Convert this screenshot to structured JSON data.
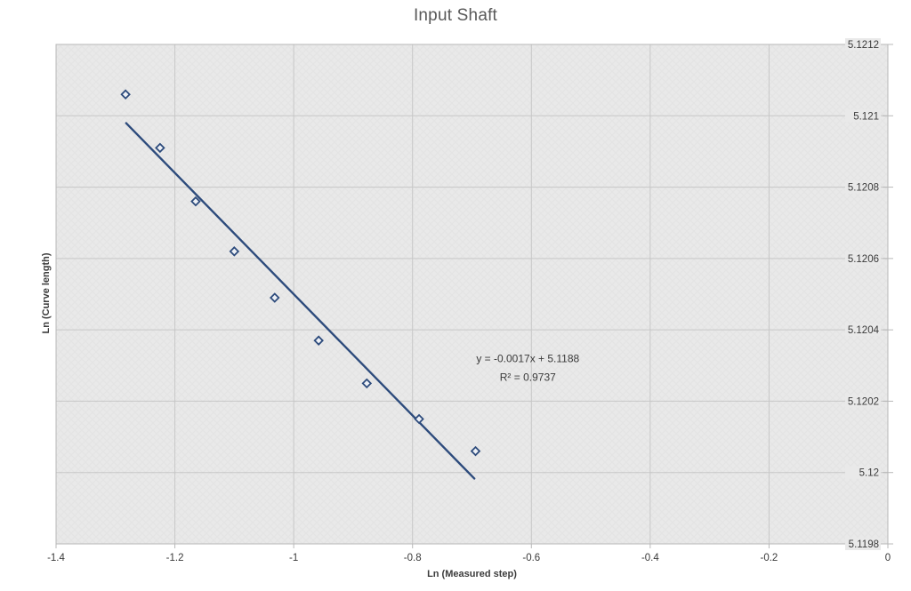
{
  "header": {
    "title": "Input Shaft"
  },
  "colors": {
    "marker": "#2d4b7c",
    "trendline": "#2d4b7c",
    "marker_fill": "#eef1f6",
    "plot_background": "#e9e9e9",
    "gridline": "#c7c7c7",
    "plot_border": "#b8b8b8",
    "title_text": "#595959",
    "axis_text": "#3c3c3c"
  },
  "chart_data": {
    "type": "scatter",
    "title": "Input Shaft",
    "xlabel": "Ln (Measured step)",
    "ylabel": "Ln (Curve length)",
    "xlim": [
      -1.4,
      0
    ],
    "ylim": [
      5.1198,
      5.1212
    ],
    "grid": true,
    "legend": "none",
    "x_ticks": [
      -1.4,
      -1.2,
      -1,
      -0.8,
      -0.6,
      -0.4,
      -0.2,
      0
    ],
    "x_tick_labels": [
      "-1.4",
      "-1.2",
      "-1",
      "-0.8",
      "-0.6",
      "-0.4",
      "-0.2",
      "0"
    ],
    "y_ticks": [
      5.1198,
      5.12,
      5.1202,
      5.1204,
      5.1206,
      5.1208,
      5.121,
      5.1212
    ],
    "y_tick_labels": [
      "5.1198",
      "5.12",
      "5.1202",
      "5.1204",
      "5.1206",
      "5.1208",
      "5.121",
      "5.1212"
    ],
    "series": [
      {
        "marker": "open-diamond",
        "points": [
          [
            -1.283,
            5.12106
          ],
          [
            -1.225,
            5.12091
          ],
          [
            -1.165,
            5.12076
          ],
          [
            -1.1,
            5.12062
          ],
          [
            -1.032,
            5.12049
          ],
          [
            -0.958,
            5.12037
          ],
          [
            -0.877,
            5.12025
          ],
          [
            -0.789,
            5.12015
          ],
          [
            -0.694,
            5.12006
          ]
        ]
      }
    ],
    "trendline": {
      "slope": -0.0017,
      "intercept": 5.1188,
      "x_start": -1.282,
      "x_end": -0.696
    },
    "annotation": {
      "line1": "y = -0.0017x + 5.1188",
      "line2": "R² = 0.9737",
      "x": -0.606,
      "y": 5.12031
    }
  }
}
